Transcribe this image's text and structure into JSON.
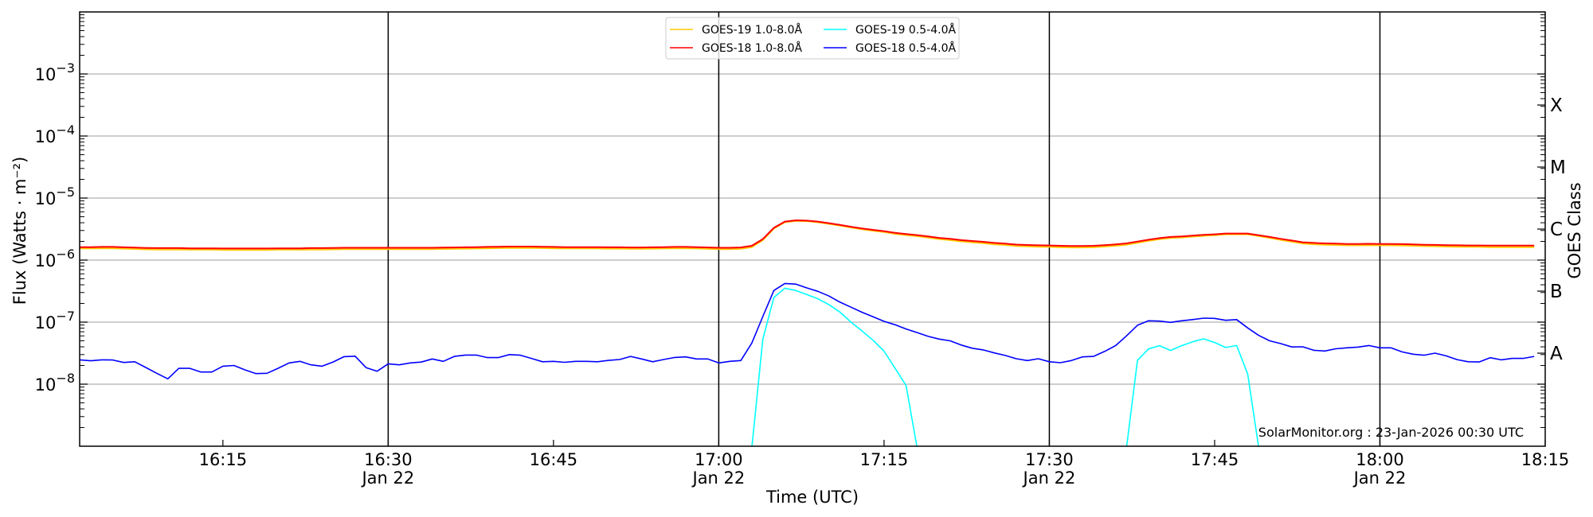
{
  "chart_data": {
    "type": "line",
    "xlabel": "Time (UTC)",
    "ylabel": "Flux (Watts · m⁻²)",
    "ylabel_right": "GOES Class",
    "yscale": "log",
    "ylim": [
      1e-09,
      0.01
    ],
    "xlim": [
      "16:02",
      "18:15"
    ],
    "grid": "horizontal at each decade",
    "legend_position": "top-center",
    "watermark": "SolarMonitor.org : 23-Jan-2026 00:30 UTC",
    "x_tick_labels": [
      {
        "time": "16:15"
      },
      {
        "time": "16:30",
        "date": "Jan 22"
      },
      {
        "time": "16:45"
      },
      {
        "time": "17:00",
        "date": "Jan 22"
      },
      {
        "time": "17:15"
      },
      {
        "time": "17:30",
        "date": "Jan 22"
      },
      {
        "time": "17:45"
      },
      {
        "time": "18:00",
        "date": "Jan 22"
      },
      {
        "time": "18:15"
      }
    ],
    "y_tick_labels": [
      {
        "value": 0.001,
        "base": "10",
        "exp": "−3"
      },
      {
        "value": 0.0001,
        "base": "10",
        "exp": "−4"
      },
      {
        "value": 1e-05,
        "base": "10",
        "exp": "−5"
      },
      {
        "value": 1e-06,
        "base": "10",
        "exp": "−6"
      },
      {
        "value": 1e-07,
        "base": "10",
        "exp": "−7"
      },
      {
        "value": 1e-08,
        "base": "10",
        "exp": "−8"
      }
    ],
    "goes_classes": [
      {
        "label": "X",
        "value": 0.000316
      },
      {
        "label": "M",
        "value": 3.16e-05
      },
      {
        "label": "C",
        "value": 3.16e-06
      },
      {
        "label": "B",
        "value": 3.16e-07
      },
      {
        "label": "A",
        "value": 3.16e-08
      }
    ],
    "x_start": "16:02",
    "x_step_minutes": 1,
    "series": [
      {
        "name": "GOES-19 1.0-8.0Å",
        "color": "#ffc800",
        "values": [
          1.54e-06,
          1.54e-06,
          1.55e-06,
          1.55e-06,
          1.53e-06,
          1.51e-06,
          1.49e-06,
          1.48e-06,
          1.48e-06,
          1.48e-06,
          1.47e-06,
          1.47e-06,
          1.47e-06,
          1.46e-06,
          1.46e-06,
          1.46e-06,
          1.46e-06,
          1.46e-06,
          1.47e-06,
          1.47e-06,
          1.47e-06,
          1.48e-06,
          1.48e-06,
          1.49e-06,
          1.5e-06,
          1.5e-06,
          1.5e-06,
          1.5e-06,
          1.5e-06,
          1.5e-06,
          1.5e-06,
          1.5e-06,
          1.5e-06,
          1.51e-06,
          1.52e-06,
          1.53e-06,
          1.54e-06,
          1.55e-06,
          1.56e-06,
          1.57e-06,
          1.57e-06,
          1.57e-06,
          1.56e-06,
          1.55e-06,
          1.54e-06,
          1.54e-06,
          1.54e-06,
          1.54e-06,
          1.53e-06,
          1.53e-06,
          1.52e-06,
          1.52e-06,
          1.53e-06,
          1.54e-06,
          1.55e-06,
          1.55e-06,
          1.54e-06,
          1.52e-06,
          1.5e-06,
          1.5e-06,
          1.52e-06,
          1.62e-06,
          2.1e-06,
          3.22e-06,
          4.08e-06,
          4.28e-06,
          4.24e-06,
          4.07e-06,
          3.83e-06,
          3.6e-06,
          3.35e-06,
          3.13e-06,
          2.97e-06,
          2.83e-06,
          2.65e-06,
          2.53e-06,
          2.43e-06,
          2.3e-06,
          2.18e-06,
          2.1e-06,
          2e-06,
          1.93e-06,
          1.87e-06,
          1.8e-06,
          1.75e-06,
          1.69e-06,
          1.66e-06,
          1.64e-06,
          1.63e-06,
          1.61e-06,
          1.6e-06,
          1.6e-06,
          1.61e-06,
          1.65e-06,
          1.7e-06,
          1.77e-06,
          1.9e-06,
          2.04e-06,
          2.17e-06,
          2.27e-06,
          2.31e-06,
          2.39e-06,
          2.46e-06,
          2.52e-06,
          2.6e-06,
          2.6e-06,
          2.6e-06,
          2.44e-06,
          2.27e-06,
          2.11e-06,
          1.98e-06,
          1.85e-06,
          1.8e-06,
          1.77e-06,
          1.75e-06,
          1.73e-06,
          1.73e-06,
          1.74e-06,
          1.73e-06,
          1.73e-06,
          1.72e-06,
          1.7e-06,
          1.68e-06,
          1.67e-06,
          1.65e-06,
          1.64e-06,
          1.63e-06,
          1.63e-06,
          1.62e-06,
          1.62e-06,
          1.62e-06,
          1.62e-06,
          1.62e-06
        ]
      },
      {
        "name": "GOES-18 1.0-8.0Å",
        "color": "#ff0000",
        "values": [
          1.62e-06,
          1.62e-06,
          1.63e-06,
          1.63e-06,
          1.61e-06,
          1.59e-06,
          1.57e-06,
          1.56e-06,
          1.56e-06,
          1.56e-06,
          1.55e-06,
          1.55e-06,
          1.55e-06,
          1.54e-06,
          1.54e-06,
          1.54e-06,
          1.54e-06,
          1.54e-06,
          1.55e-06,
          1.55e-06,
          1.55e-06,
          1.56e-06,
          1.56e-06,
          1.57e-06,
          1.58e-06,
          1.58e-06,
          1.58e-06,
          1.58e-06,
          1.58e-06,
          1.58e-06,
          1.58e-06,
          1.58e-06,
          1.58e-06,
          1.59e-06,
          1.6e-06,
          1.61e-06,
          1.62e-06,
          1.63e-06,
          1.64e-06,
          1.65e-06,
          1.65e-06,
          1.65e-06,
          1.64e-06,
          1.63e-06,
          1.62e-06,
          1.62e-06,
          1.62e-06,
          1.62e-06,
          1.61e-06,
          1.61e-06,
          1.6e-06,
          1.6e-06,
          1.61e-06,
          1.62e-06,
          1.63e-06,
          1.63e-06,
          1.62e-06,
          1.6e-06,
          1.58e-06,
          1.58e-06,
          1.6e-06,
          1.7e-06,
          2.18e-06,
          3.32e-06,
          4.17e-06,
          4.37e-06,
          4.33e-06,
          4.17e-06,
          3.93e-06,
          3.7e-06,
          3.45e-06,
          3.23e-06,
          3.07e-06,
          2.93e-06,
          2.75e-06,
          2.63e-06,
          2.53e-06,
          2.4e-06,
          2.28e-06,
          2.2e-06,
          2.1e-06,
          2.03e-06,
          1.97e-06,
          1.89e-06,
          1.84e-06,
          1.78e-06,
          1.75e-06,
          1.73e-06,
          1.72e-06,
          1.7e-06,
          1.69e-06,
          1.69e-06,
          1.7e-06,
          1.74e-06,
          1.79e-06,
          1.86e-06,
          1.99e-06,
          2.13e-06,
          2.26e-06,
          2.36e-06,
          2.4e-06,
          2.48e-06,
          2.55e-06,
          2.6e-06,
          2.68e-06,
          2.68e-06,
          2.68e-06,
          2.52e-06,
          2.36e-06,
          2.2e-06,
          2.07e-06,
          1.94e-06,
          1.89e-06,
          1.86e-06,
          1.84e-06,
          1.82e-06,
          1.82e-06,
          1.83e-06,
          1.82e-06,
          1.82e-06,
          1.81e-06,
          1.79e-06,
          1.77e-06,
          1.76e-06,
          1.74e-06,
          1.73e-06,
          1.72e-06,
          1.72e-06,
          1.71e-06,
          1.71e-06,
          1.71e-06,
          1.71e-06,
          1.71e-06
        ]
      },
      {
        "name": "GOES-19 0.5-4.0Å",
        "color": "#00ffff",
        "values": [
          null,
          null,
          null,
          null,
          null,
          null,
          null,
          null,
          null,
          null,
          null,
          null,
          null,
          null,
          null,
          null,
          null,
          null,
          null,
          null,
          null,
          null,
          null,
          null,
          null,
          null,
          null,
          null,
          null,
          null,
          null,
          null,
          null,
          null,
          null,
          null,
          null,
          null,
          null,
          null,
          null,
          null,
          null,
          null,
          null,
          null,
          null,
          null,
          null,
          null,
          null,
          null,
          null,
          null,
          null,
          null,
          null,
          null,
          null,
          null,
          null,
          null,
          5.3e-08,
          2.5e-07,
          3.52e-07,
          3.24e-07,
          2.78e-07,
          2.38e-07,
          1.91e-07,
          1.45e-07,
          1e-07,
          7.2e-08,
          5.1e-08,
          3.4e-08,
          1.8e-08,
          9.5e-09,
          null,
          null,
          null,
          null,
          null,
          null,
          null,
          null,
          null,
          null,
          null,
          null,
          null,
          null,
          null,
          null,
          null,
          null,
          null,
          null,
          2.43e-08,
          3.7e-08,
          4.17e-08,
          3.5e-08,
          4.17e-08,
          4.83e-08,
          5.38e-08,
          4.7e-08,
          3.9e-08,
          4.2e-08,
          1.45e-08,
          null,
          null,
          null,
          null,
          null,
          null,
          null,
          null,
          null,
          null,
          null,
          null,
          null,
          null,
          null,
          null,
          null,
          null,
          null,
          null,
          null,
          null,
          null,
          null,
          null,
          null
        ]
      },
      {
        "name": "GOES-18 0.5-4.0Å",
        "color": "#0000ff",
        "values": [
          2.47e-08,
          2.38e-08,
          2.47e-08,
          2.45e-08,
          2.24e-08,
          2.3e-08,
          1.86e-08,
          1.5e-08,
          1.22e-08,
          1.8e-08,
          1.8e-08,
          1.57e-08,
          1.57e-08,
          1.95e-08,
          2e-08,
          1.7e-08,
          1.48e-08,
          1.5e-08,
          1.8e-08,
          2.2e-08,
          2.33e-08,
          2.05e-08,
          1.95e-08,
          2.28e-08,
          2.78e-08,
          2.83e-08,
          1.84e-08,
          1.62e-08,
          2.13e-08,
          2.05e-08,
          2.2e-08,
          2.27e-08,
          2.55e-08,
          2.33e-08,
          2.8e-08,
          2.95e-08,
          2.95e-08,
          2.68e-08,
          2.68e-08,
          3e-08,
          2.93e-08,
          2.6e-08,
          2.3e-08,
          2.33e-08,
          2.25e-08,
          2.33e-08,
          2.33e-08,
          2.3e-08,
          2.42e-08,
          2.5e-08,
          2.8e-08,
          2.55e-08,
          2.3e-08,
          2.5e-08,
          2.7e-08,
          2.75e-08,
          2.55e-08,
          2.55e-08,
          2.2e-08,
          2.33e-08,
          2.4e-08,
          4.6e-08,
          1.23e-07,
          3.24e-07,
          4.2e-07,
          4.1e-07,
          3.56e-07,
          3.13e-07,
          2.63e-07,
          2.1e-07,
          1.74e-07,
          1.44e-07,
          1.22e-07,
          1.03e-07,
          9.06e-08,
          7.76e-08,
          6.8e-08,
          5.9e-08,
          5.33e-08,
          5e-08,
          4.27e-08,
          3.8e-08,
          3.57e-08,
          3.19e-08,
          2.9e-08,
          2.57e-08,
          2.4e-08,
          2.57e-08,
          2.3e-08,
          2.22e-08,
          2.4e-08,
          2.75e-08,
          2.8e-08,
          3.36e-08,
          4.17e-08,
          6e-08,
          8.9e-08,
          1.05e-07,
          1.04e-07,
          9.9e-08,
          1.05e-07,
          1.1e-07,
          1.16e-07,
          1.15e-07,
          1.07e-07,
          1.1e-07,
          8.05e-08,
          6.1e-08,
          5e-08,
          4.5e-08,
          3.98e-08,
          4e-08,
          3.52e-08,
          3.42e-08,
          3.72e-08,
          3.85e-08,
          3.96e-08,
          4.2e-08,
          3.85e-08,
          3.85e-08,
          3.32e-08,
          3.04e-08,
          2.93e-08,
          3.16e-08,
          2.86e-08,
          2.49e-08,
          2.3e-08,
          2.28e-08,
          2.67e-08,
          2.47e-08,
          2.6e-08,
          2.6e-08,
          2.8e-08
        ]
      }
    ]
  }
}
